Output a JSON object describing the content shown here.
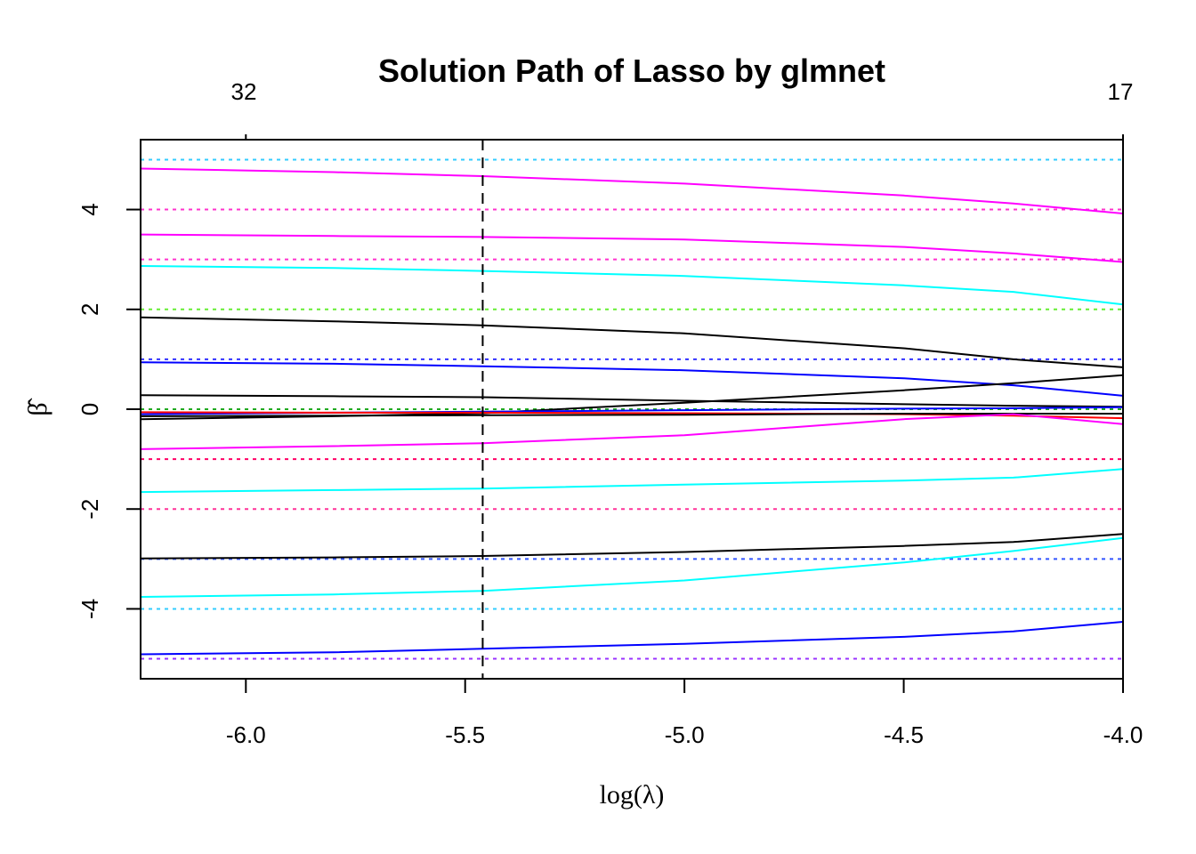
{
  "chart_data": {
    "type": "line",
    "title": "Solution Path of Lasso by glmnet",
    "xlabel": "log(λ)",
    "ylabel": "β̂",
    "xlim": [
      -6.24,
      -4.0
    ],
    "ylim": [
      -5.4,
      5.4
    ],
    "x_ticks": [
      -6.0,
      -5.5,
      -5.0,
      -4.5,
      -4.0
    ],
    "x_tick_labels": [
      "-6.0",
      "-5.5",
      "-5.0",
      "-4.5",
      "-4.0"
    ],
    "y_ticks": [
      -4,
      -2,
      0,
      2,
      4
    ],
    "y_tick_labels": [
      "-4",
      "-2",
      "0",
      "2",
      "4"
    ],
    "top_axis": {
      "ticks": [
        -6.0,
        -4.0
      ],
      "labels": [
        "32",
        "17"
      ]
    },
    "vline": {
      "x": -5.46,
      "style": "dashed",
      "color": "#000000"
    },
    "reference_lines": [
      {
        "y": 5,
        "color": "#33ccff"
      },
      {
        "y": 4,
        "color": "#ff33cc"
      },
      {
        "y": 3,
        "color": "#ff33cc"
      },
      {
        "y": 2,
        "color": "#66ee33"
      },
      {
        "y": 1,
        "color": "#3333ff"
      },
      {
        "y": 0,
        "color": "#22aa22"
      },
      {
        "y": -1,
        "color": "#ff0066"
      },
      {
        "y": -2,
        "color": "#ff3399"
      },
      {
        "y": -3,
        "color": "#3355ff"
      },
      {
        "y": -4,
        "color": "#33ccff"
      },
      {
        "y": -5,
        "color": "#9933ff"
      }
    ],
    "x": [
      -6.24,
      -5.8,
      -5.46,
      -5.0,
      -4.5,
      -4.25,
      -4.0
    ],
    "series": [
      {
        "color": "#ff00ff",
        "values": [
          4.82,
          4.75,
          4.67,
          4.52,
          4.28,
          4.12,
          3.92
        ]
      },
      {
        "color": "#ff00ff",
        "values": [
          3.5,
          3.47,
          3.45,
          3.4,
          3.25,
          3.12,
          2.95
        ]
      },
      {
        "color": "#00ffff",
        "values": [
          2.87,
          2.83,
          2.77,
          2.67,
          2.48,
          2.35,
          2.1
        ]
      },
      {
        "color": "#000000",
        "values": [
          1.84,
          1.76,
          1.68,
          1.52,
          1.22,
          1.0,
          0.84
        ]
      },
      {
        "color": "#0000ff",
        "values": [
          0.94,
          0.91,
          0.86,
          0.78,
          0.62,
          0.48,
          0.27
        ]
      },
      {
        "color": "#000000",
        "values": [
          0.28,
          0.26,
          0.24,
          0.17,
          0.1,
          0.07,
          0.05
        ]
      },
      {
        "color": "#000000",
        "values": [
          -0.2,
          -0.14,
          -0.08,
          0.13,
          0.38,
          0.52,
          0.68
        ]
      },
      {
        "color": "#0000ff",
        "values": [
          -0.1,
          -0.07,
          -0.05,
          -0.02,
          0.01,
          0.02,
          0.04
        ]
      },
      {
        "color": "#ff0000",
        "values": [
          -0.06,
          -0.07,
          -0.07,
          -0.08,
          -0.1,
          -0.13,
          -0.18
        ]
      },
      {
        "color": "#000000",
        "values": [
          -0.14,
          -0.13,
          -0.12,
          -0.11,
          -0.09,
          -0.09,
          -0.09
        ]
      },
      {
        "color": "#ff00ff",
        "values": [
          -0.8,
          -0.74,
          -0.68,
          -0.52,
          -0.2,
          -0.1,
          -0.3
        ]
      },
      {
        "color": "#00ffff",
        "values": [
          -1.66,
          -1.62,
          -1.59,
          -1.51,
          -1.43,
          -1.37,
          -1.2
        ]
      },
      {
        "color": "#000000",
        "values": [
          -2.99,
          -2.97,
          -2.94,
          -2.86,
          -2.74,
          -2.66,
          -2.5
        ]
      },
      {
        "color": "#00ffff",
        "values": [
          -3.76,
          -3.71,
          -3.64,
          -3.43,
          -3.07,
          -2.84,
          -2.58
        ]
      },
      {
        "color": "#0000ff",
        "values": [
          -4.91,
          -4.87,
          -4.8,
          -4.7,
          -4.56,
          -4.45,
          -4.26
        ]
      }
    ]
  }
}
